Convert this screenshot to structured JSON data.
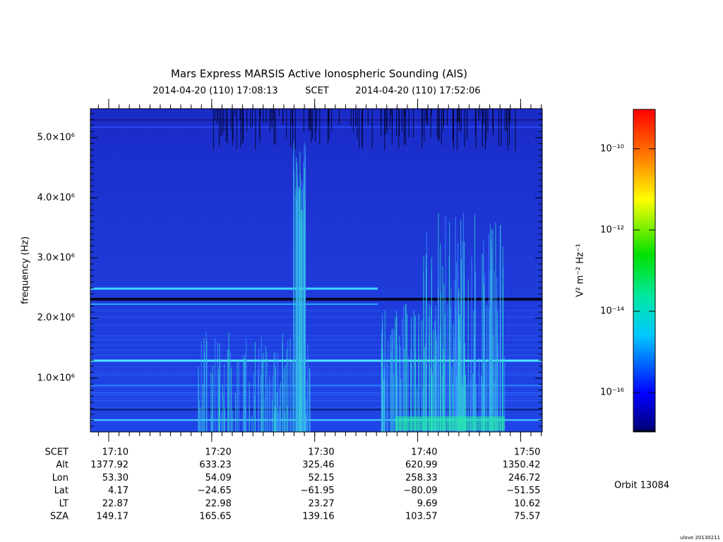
{
  "chart_data": {
    "type": "spectrogram",
    "title": "Mars Express MARSIS Active Ionospheric Sounding (AIS)",
    "start_time": "2014-04-20 (110) 17:08:13",
    "time_system": "SCET",
    "end_time": "2014-04-20 (110) 17:52:06",
    "y_label": "frequency (Hz)",
    "xlim": [
      "17:08:13",
      "17:52:06"
    ],
    "xticks": [
      "17:10",
      "17:20",
      "17:30",
      "17:40",
      "17:50"
    ],
    "ylim": [
      106000,
      5482000
    ],
    "yticks": [
      {
        "value": 1000000,
        "label": "1.0×10⁶"
      },
      {
        "value": 2000000,
        "label": "2.0×10⁶"
      },
      {
        "value": 3000000,
        "label": "3.0×10⁶"
      },
      {
        "value": 4000000,
        "label": "4.0×10⁶"
      },
      {
        "value": 5000000,
        "label": "5.0×10⁶"
      }
    ],
    "colorbar_label": "V² m⁻² Hz⁻¹",
    "zlim": [
      -16.97,
      -9.03
    ],
    "zticks": [
      {
        "value": -16,
        "label": "10⁻¹⁶"
      },
      {
        "value": -14,
        "label": "10⁻¹⁴"
      },
      {
        "value": -12,
        "label": "10⁻¹²"
      },
      {
        "value": -10,
        "label": "10⁻¹⁰"
      }
    ]
  },
  "ephemeris": {
    "rows": [
      {
        "name": "SCET",
        "values": [
          "17:10",
          "17:20",
          "17:30",
          "17:40",
          "17:50"
        ]
      },
      {
        "name": "Alt",
        "values": [
          "1377.92",
          "633.23",
          "325.46",
          "620.99",
          "1350.42"
        ]
      },
      {
        "name": "Lon",
        "values": [
          "53.30",
          "54.09",
          "52.15",
          "258.33",
          "246.72"
        ]
      },
      {
        "name": "Lat",
        "values": [
          "4.17",
          "−24.65",
          "−61.95",
          "−80.09",
          "−51.55"
        ]
      },
      {
        "name": "LT",
        "values": [
          "22.87",
          "22.98",
          "23.27",
          "9.69",
          "10.62"
        ]
      },
      {
        "name": "SZA",
        "values": [
          "149.17",
          "165.65",
          "139.16",
          "103.57",
          "75.57"
        ]
      }
    ]
  },
  "orbit": "Orbit 13084",
  "footer": "ulove 20130211"
}
